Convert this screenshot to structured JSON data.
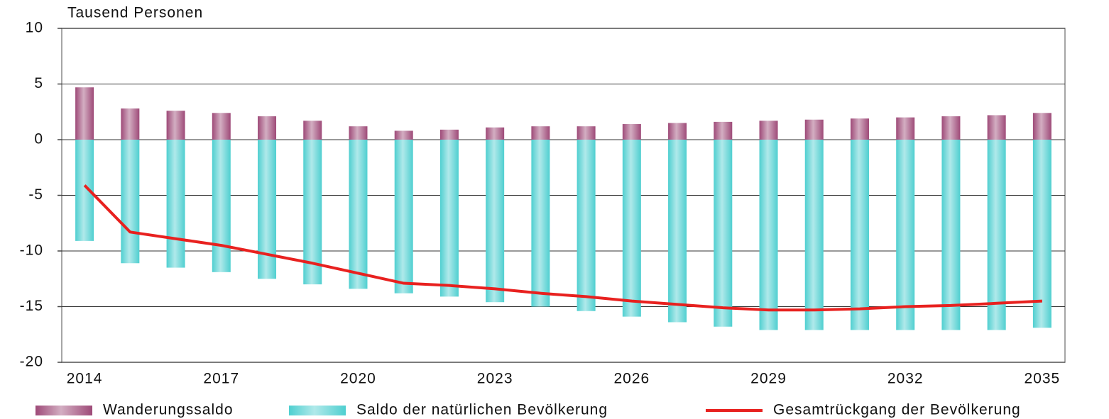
{
  "chart_data": {
    "type": "bar",
    "y_label": "Tausend Personen",
    "categories": [
      "2014",
      null,
      null,
      "2017",
      null,
      null,
      "2020",
      null,
      null,
      "2023",
      null,
      null,
      "2026",
      null,
      null,
      "2029",
      null,
      null,
      "2032",
      null,
      null,
      "2035"
    ],
    "series": [
      {
        "name": "Wanderungssaldo",
        "type": "bar",
        "color": "#9e4a78",
        "values": [
          4.7,
          2.8,
          2.6,
          2.4,
          2.1,
          1.7,
          1.2,
          0.8,
          0.9,
          1.1,
          1.2,
          1.2,
          1.4,
          1.5,
          1.6,
          1.7,
          1.8,
          1.9,
          2.0,
          2.1,
          2.2,
          2.4
        ]
      },
      {
        "name": "Saldo der natürlichen Bevölkerung",
        "type": "bar",
        "color": "#4fcfd0",
        "values": [
          -9.1,
          -11.1,
          -11.5,
          -11.9,
          -12.5,
          -13.0,
          -13.4,
          -13.8,
          -14.1,
          -14.6,
          -15.0,
          -15.4,
          -15.9,
          -16.4,
          -16.8,
          -17.1,
          -17.1,
          -17.1,
          -17.1,
          -17.1,
          -17.1,
          -16.9
        ]
      },
      {
        "name": "Gesamtrückgang der Bevölkerung",
        "type": "line",
        "color": "#e8211f",
        "values": [
          -4.1,
          -8.3,
          -8.9,
          -9.5,
          -10.3,
          -11.1,
          -12.0,
          -12.9,
          -13.1,
          -13.4,
          -13.8,
          -14.1,
          -14.5,
          -14.8,
          -15.1,
          -15.3,
          -15.3,
          -15.2,
          -15.0,
          -14.9,
          -14.7,
          -14.5
        ]
      }
    ],
    "ylim": [
      -20,
      10
    ],
    "yticks": [
      -20,
      -15,
      -10,
      -5,
      0,
      5,
      10
    ],
    "grid": true
  }
}
